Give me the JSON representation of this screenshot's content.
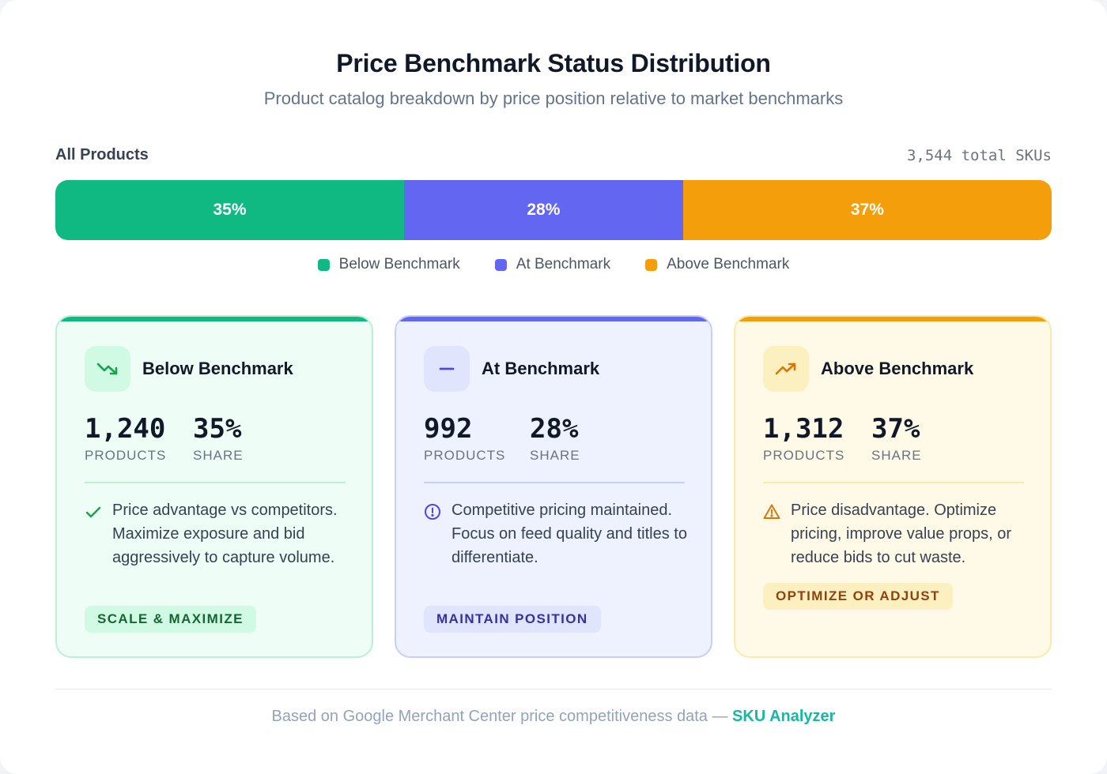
{
  "header": {
    "title": "Price Benchmark Status Distribution",
    "subtitle": "Product catalog breakdown by price position relative to market benchmarks"
  },
  "distribution": {
    "label": "All Products",
    "total": "3,544 total SKUs",
    "segments": [
      {
        "label": "35%",
        "share": 0.35,
        "color": "#10b981"
      },
      {
        "label": "28%",
        "share": 0.28,
        "color": "#6366f1"
      },
      {
        "label": "37%",
        "share": 0.37,
        "color": "#f59e0b"
      }
    ]
  },
  "legend": [
    {
      "label": "Below Benchmark",
      "color": "#10b981"
    },
    {
      "label": "At Benchmark",
      "color": "#6366f1"
    },
    {
      "label": "Above Benchmark",
      "color": "#f59e0b"
    }
  ],
  "cards": [
    {
      "title": "Below Benchmark",
      "icon": "trend-down-icon",
      "products": "1,240",
      "products_label": "PRODUCTS",
      "share": "35%",
      "share_label": "SHARE",
      "note_icon": "check-icon",
      "note": "Price advantage vs competitors. Maximize exposure and bid aggressively to capture volume.",
      "tag": "SCALE & MAXIMIZE",
      "colors": {
        "accent": "#10b981",
        "bg": "#eefdf5",
        "border": "#bbf0d4",
        "icon_bg": "#d1fae5",
        "tag_bg": "#d1fae5",
        "tag_text": "#166534",
        "divider": "#bbf0d4"
      }
    },
    {
      "title": "At Benchmark",
      "icon": "minus-icon",
      "products": "992",
      "products_label": "PRODUCTS",
      "share": "28%",
      "share_label": "SHARE",
      "note_icon": "info-circle-icon",
      "note": "Competitive pricing maintained. Focus on feed quality and titles to differentiate.",
      "tag": "MAINTAIN POSITION",
      "colors": {
        "accent": "#6366f1",
        "bg": "#eef1fe",
        "border": "#c7cff8",
        "icon_bg": "#e0e5fd",
        "tag_bg": "#e0e5fd",
        "tag_text": "#3730a3",
        "divider": "#c7cff8"
      }
    },
    {
      "title": "Above Benchmark",
      "icon": "trend-up-icon",
      "products": "1,312",
      "products_label": "PRODUCTS",
      "share": "37%",
      "share_label": "SHARE",
      "note_icon": "warning-triangle-icon",
      "note": "Price disadvantage. Optimize pricing, improve value props, or reduce bids to cut waste.",
      "tag": "OPTIMIZE OR ADJUST",
      "colors": {
        "accent": "#f59e0b",
        "bg": "#fffae8",
        "border": "#fde9a8",
        "icon_bg": "#fdf0c0",
        "tag_bg": "#fdf0c0",
        "tag_text": "#92400e",
        "divider": "#fde9a8"
      }
    }
  ],
  "footer": {
    "text": "Based on Google Merchant Center price competitiveness data — ",
    "brand": "SKU Analyzer"
  }
}
